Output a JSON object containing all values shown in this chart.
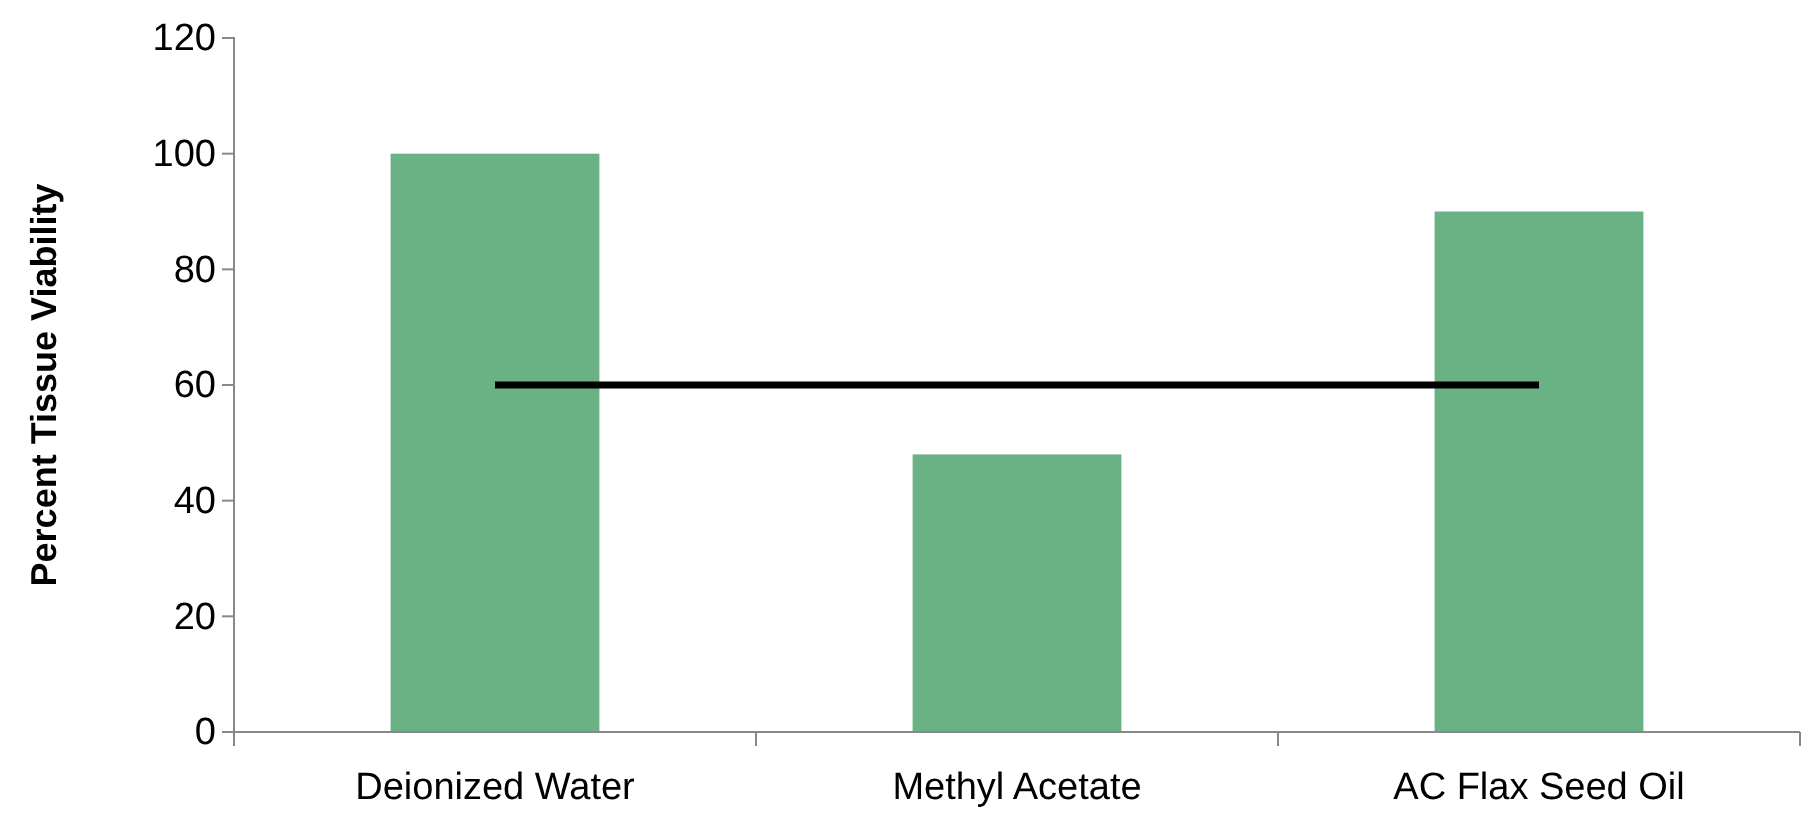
{
  "chart_data": {
    "type": "bar",
    "ylabel": "Percent Tissue Viability",
    "categories": [
      "Deionized Water",
      "Methyl Acetate",
      "AC Flax Seed Oil"
    ],
    "series": [
      {
        "color": "#6ab184",
        "values": [
          100,
          48,
          90
        ]
      },
      {
        "type": "line",
        "color": "#000000",
        "values": [
          60,
          60,
          60
        ]
      }
    ],
    "ylim": [
      0,
      120
    ],
    "yticks": [
      0,
      20,
      40,
      60,
      80,
      100,
      120
    ],
    "grid": false,
    "marker": "none",
    "line_style": "solid"
  }
}
